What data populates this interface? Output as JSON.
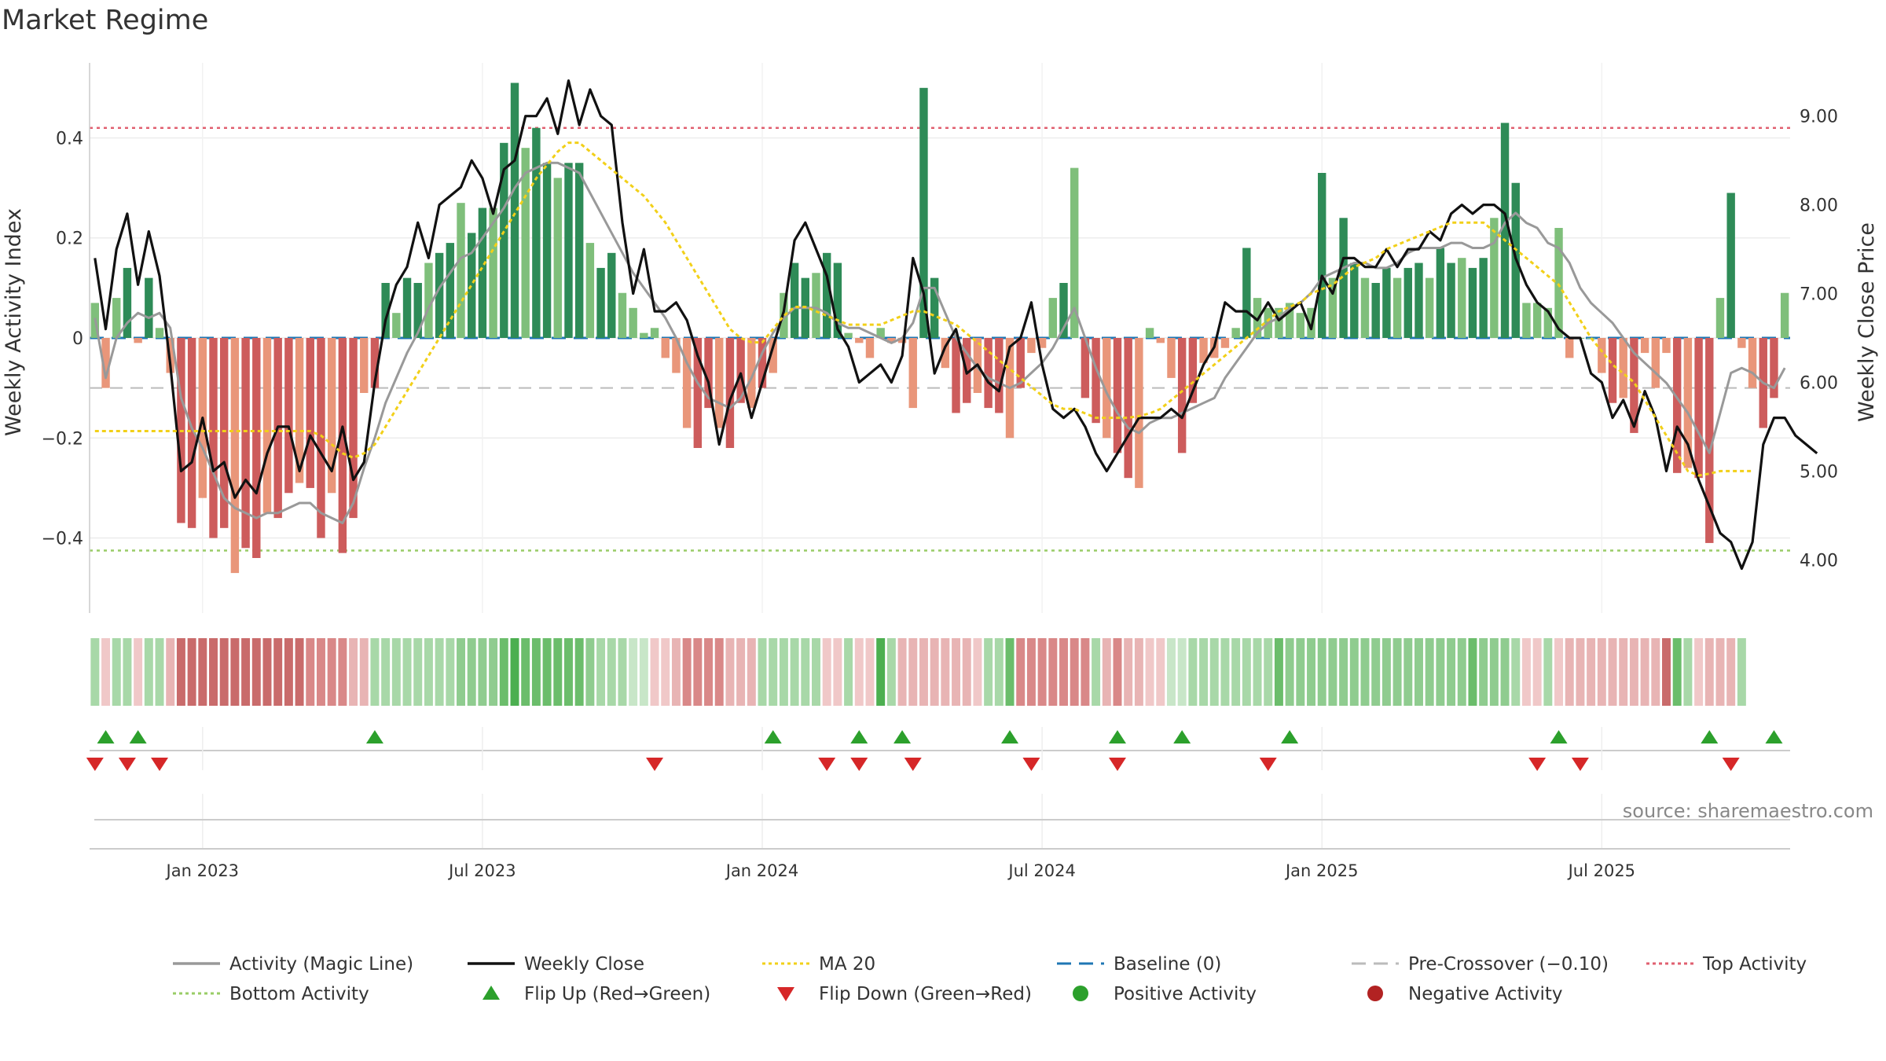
{
  "title": "Market Regime",
  "source_text": "source: sharemaestro.com",
  "chart_data": {
    "type": "bar",
    "y_left": {
      "label": "Weekly Activity Index",
      "ticks": [
        0.4,
        0.2,
        0,
        -0.2,
        -0.4
      ],
      "tick_labels": [
        "0.4",
        "0.2",
        "0",
        "−0.2",
        "−0.4"
      ],
      "range": [
        -0.55,
        0.55
      ]
    },
    "y_right": {
      "label": "Weekly Close Price",
      "ticks": [
        9.0,
        8.0,
        7.0,
        6.0,
        5.0,
        4.0
      ],
      "tick_labels": [
        "9.00",
        "8.00",
        "7.00",
        "6.00",
        "5.00",
        "4.00"
      ],
      "range": [
        3.4,
        9.6
      ]
    },
    "x_ticks": [
      {
        "label": "Jan 2023",
        "week": 10
      },
      {
        "label": "Jul 2023",
        "week": 36
      },
      {
        "label": "Jan 2024",
        "week": 62
      },
      {
        "label": "Jul 2024",
        "week": 88
      },
      {
        "label": "Jan 2025",
        "week": 114
      },
      {
        "label": "Jul 2025",
        "week": 140
      }
    ],
    "reference_lines": {
      "top_activity": 0.42,
      "bottom_activity": -0.425,
      "pre_crossover": -0.1,
      "baseline": 0
    },
    "activity_bars": [
      0.07,
      -0.1,
      0.08,
      0.14,
      -0.01,
      0.12,
      0.02,
      -0.07,
      -0.37,
      -0.38,
      -0.32,
      -0.4,
      -0.38,
      -0.47,
      -0.42,
      -0.44,
      -0.35,
      -0.36,
      -0.31,
      -0.29,
      -0.3,
      -0.4,
      -0.31,
      -0.43,
      -0.36,
      -0.11,
      -0.1,
      0.11,
      0.05,
      0.12,
      0.11,
      0.15,
      0.17,
      0.19,
      0.27,
      0.21,
      0.26,
      0.26,
      0.39,
      0.51,
      0.38,
      0.42,
      0.35,
      0.32,
      0.35,
      0.35,
      0.19,
      0.14,
      0.17,
      0.09,
      0.06,
      0.01,
      0.02,
      -0.04,
      -0.07,
      -0.18,
      -0.22,
      -0.14,
      -0.18,
      -0.22,
      -0.13,
      -0.14,
      -0.1,
      -0.07,
      0.09,
      0.15,
      0.12,
      0.13,
      0.17,
      0.15,
      0.01,
      -0.01,
      -0.04,
      0.02,
      -0.01,
      -0.01,
      -0.14,
      0.5,
      0.12,
      -0.06,
      -0.15,
      -0.13,
      -0.11,
      -0.14,
      -0.15,
      -0.2,
      -0.1,
      -0.03,
      -0.02,
      0.08,
      0.11,
      0.34,
      -0.12,
      -0.17,
      -0.2,
      -0.23,
      -0.28,
      -0.3,
      0.02,
      -0.01,
      -0.08,
      -0.23,
      -0.13,
      -0.05,
      -0.04,
      -0.02,
      0.02,
      0.18,
      0.08,
      0.06,
      0.06,
      0.07,
      0.05,
      0.06,
      0.33,
      0.12,
      0.24,
      0.15,
      0.12,
      0.11,
      0.14,
      0.12,
      0.14,
      0.15,
      0.12,
      0.18,
      0.15,
      0.16,
      0.14,
      0.16,
      0.24,
      0.43,
      0.31,
      0.07,
      0.07,
      0.06,
      0.22,
      -0.04,
      0.0,
      0.0,
      -0.07,
      -0.13,
      -0.12,
      -0.19,
      -0.03,
      -0.1,
      -0.03,
      -0.27,
      -0.26,
      -0.28,
      -0.41,
      0.08,
      0.29,
      -0.02,
      -0.1,
      -0.18,
      -0.12,
      0.09
    ],
    "bar_colors": {
      "positive_strong": "#2e8b57",
      "positive_light": "#7fbf7b",
      "negative_strong": "#cd5c5c",
      "negative_light": "#e9967a"
    },
    "series": [
      {
        "name": "Activity (Magic Line)",
        "color": "#999999",
        "values": [
          0.04,
          -0.08,
          0.0,
          0.03,
          0.05,
          0.04,
          0.05,
          0.02,
          -0.12,
          -0.18,
          -0.22,
          -0.27,
          -0.32,
          -0.34,
          -0.35,
          -0.36,
          -0.35,
          -0.35,
          -0.34,
          -0.33,
          -0.33,
          -0.35,
          -0.36,
          -0.37,
          -0.33,
          -0.26,
          -0.2,
          -0.13,
          -0.08,
          -0.03,
          0.01,
          0.06,
          0.1,
          0.13,
          0.16,
          0.17,
          0.2,
          0.23,
          0.26,
          0.3,
          0.33,
          0.34,
          0.35,
          0.35,
          0.34,
          0.33,
          0.29,
          0.25,
          0.21,
          0.17,
          0.13,
          0.1,
          0.07,
          0.04,
          0.0,
          -0.05,
          -0.09,
          -0.12,
          -0.13,
          -0.14,
          -0.12,
          -0.08,
          -0.03,
          0.01,
          0.04,
          0.06,
          0.06,
          0.06,
          0.05,
          0.03,
          0.02,
          0.02,
          0.01,
          0.0,
          -0.01,
          0.0,
          0.03,
          0.1,
          0.1,
          0.05,
          0.0,
          -0.03,
          -0.06,
          -0.08,
          -0.09,
          -0.1,
          -0.09,
          -0.07,
          -0.05,
          -0.02,
          0.02,
          0.06,
          0.0,
          -0.06,
          -0.11,
          -0.15,
          -0.18,
          -0.19,
          -0.17,
          -0.16,
          -0.16,
          -0.15,
          -0.14,
          -0.13,
          -0.12,
          -0.08,
          -0.05,
          -0.02,
          0.01,
          0.03,
          0.04,
          0.06,
          0.07,
          0.09,
          0.12,
          0.13,
          0.14,
          0.15,
          0.15,
          0.14,
          0.14,
          0.15,
          0.17,
          0.18,
          0.18,
          0.18,
          0.19,
          0.19,
          0.18,
          0.18,
          0.19,
          0.23,
          0.25,
          0.23,
          0.22,
          0.19,
          0.18,
          0.15,
          0.1,
          0.07,
          0.05,
          0.03,
          0.0,
          -0.03,
          -0.05,
          -0.07,
          -0.09,
          -0.12,
          -0.15,
          -0.19,
          -0.23,
          -0.15,
          -0.07,
          -0.06,
          -0.07,
          -0.09,
          -0.1,
          -0.06
        ]
      },
      {
        "name": "Weekly Close",
        "color": "#111111",
        "values": [
          7.4,
          6.6,
          7.5,
          7.9,
          7.1,
          7.7,
          7.2,
          6.2,
          5.0,
          5.1,
          5.6,
          5.0,
          5.1,
          4.7,
          4.9,
          4.75,
          5.2,
          5.5,
          5.5,
          5.0,
          5.4,
          5.2,
          5.0,
          5.5,
          4.9,
          5.1,
          6.0,
          6.7,
          7.1,
          7.3,
          7.8,
          7.4,
          8.0,
          8.1,
          8.2,
          8.5,
          8.3,
          7.9,
          8.4,
          8.5,
          9.0,
          9.0,
          9.2,
          8.8,
          9.4,
          8.9,
          9.3,
          9.0,
          8.9,
          7.8,
          7.0,
          7.5,
          6.8,
          6.8,
          6.9,
          6.7,
          6.3,
          6.0,
          5.3,
          5.8,
          6.1,
          5.6,
          6.0,
          6.4,
          6.8,
          7.6,
          7.8,
          7.5,
          7.2,
          6.6,
          6.4,
          6.0,
          6.1,
          6.2,
          6.0,
          6.3,
          7.4,
          7.0,
          6.1,
          6.4,
          6.6,
          6.1,
          6.2,
          6.0,
          5.9,
          6.4,
          6.5,
          6.9,
          6.2,
          5.7,
          5.6,
          5.7,
          5.5,
          5.2,
          5.0,
          5.2,
          5.4,
          5.6,
          5.6,
          5.6,
          5.7,
          5.6,
          5.9,
          6.2,
          6.4,
          6.9,
          6.8,
          6.8,
          6.7,
          6.9,
          6.7,
          6.8,
          6.9,
          6.6,
          7.2,
          7.0,
          7.4,
          7.4,
          7.3,
          7.3,
          7.5,
          7.3,
          7.5,
          7.5,
          7.7,
          7.6,
          7.9,
          8.0,
          7.9,
          8.0,
          8.0,
          7.9,
          7.4,
          7.1,
          6.9,
          6.8,
          6.6,
          6.5,
          6.5,
          6.1,
          6.0,
          5.6,
          5.8,
          5.5,
          5.9,
          5.6,
          5.0,
          5.5,
          5.3,
          4.9,
          4.6,
          4.3,
          4.2,
          3.9,
          4.2,
          5.3,
          5.6,
          5.6,
          5.4,
          5.3,
          5.2
        ],
        "range_check": [
          3.8,
          9.45
        ]
      },
      {
        "name": "MA 20",
        "color": "#f2d019",
        "values": [
          5.45,
          5.45,
          5.45,
          5.45,
          5.45,
          5.45,
          5.45,
          5.45,
          5.45,
          5.45,
          5.45,
          5.45,
          5.45,
          5.45,
          5.45,
          5.45,
          5.45,
          5.45,
          5.45,
          5.45,
          5.45,
          5.4,
          5.3,
          5.2,
          5.15,
          5.2,
          5.3,
          5.5,
          5.7,
          5.9,
          6.1,
          6.3,
          6.5,
          6.7,
          6.9,
          7.1,
          7.3,
          7.5,
          7.7,
          7.9,
          8.1,
          8.3,
          8.45,
          8.6,
          8.7,
          8.7,
          8.6,
          8.5,
          8.4,
          8.3,
          8.2,
          8.1,
          7.95,
          7.8,
          7.6,
          7.4,
          7.2,
          7.0,
          6.8,
          6.6,
          6.5,
          6.45,
          6.45,
          6.6,
          6.75,
          6.85,
          6.85,
          6.8,
          6.75,
          6.7,
          6.65,
          6.65,
          6.65,
          6.65,
          6.7,
          6.75,
          6.8,
          6.8,
          6.75,
          6.7,
          6.65,
          6.55,
          6.45,
          6.35,
          6.25,
          6.15,
          6.05,
          5.95,
          5.85,
          5.75,
          5.7,
          5.7,
          5.65,
          5.6,
          5.6,
          5.6,
          5.6,
          5.62,
          5.65,
          5.7,
          5.8,
          5.9,
          6.0,
          6.1,
          6.2,
          6.3,
          6.4,
          6.5,
          6.6,
          6.7,
          6.8,
          6.85,
          6.9,
          7.0,
          7.05,
          7.1,
          7.2,
          7.3,
          7.35,
          7.4,
          7.5,
          7.55,
          7.6,
          7.65,
          7.7,
          7.75,
          7.8,
          7.8,
          7.8,
          7.8,
          7.7,
          7.6,
          7.5,
          7.4,
          7.3,
          7.2,
          7.1,
          6.9,
          6.7,
          6.5,
          6.35,
          6.2,
          6.1,
          6.0,
          5.8,
          5.6,
          5.4,
          5.2,
          5.0,
          4.95,
          4.97,
          5.0,
          5.0,
          5.0,
          5.0
        ]
      }
    ],
    "regime_strip": [
      "#a8d8a8",
      "#f0c8c8",
      "#a8d8a8",
      "#a8d8a8",
      "#f0c8c8",
      "#a8d8a8",
      "#a8d8a8",
      "#e8b4b4",
      "#c96b6b",
      "#c96b6b",
      "#c96b6b",
      "#c96b6b",
      "#c96b6b",
      "#c96b6b",
      "#c96b6b",
      "#c96b6b",
      "#c96b6b",
      "#c96b6b",
      "#c96b6b",
      "#c96b6b",
      "#d98888",
      "#d98888",
      "#d98888",
      "#d98888",
      "#e8b4b4",
      "#e8b4b4",
      "#a8d8a8",
      "#a8d8a8",
      "#a8d8a8",
      "#a8d8a8",
      "#a8d8a8",
      "#a8d8a8",
      "#a8d8a8",
      "#a8d8a8",
      "#8fcc8f",
      "#8fcc8f",
      "#8fcc8f",
      "#8fcc8f",
      "#6bbd6b",
      "#4caf50",
      "#6bbd6b",
      "#6bbd6b",
      "#6bbd6b",
      "#6bbd6b",
      "#6bbd6b",
      "#6bbd6b",
      "#8fcc8f",
      "#a8d8a8",
      "#a8d8a8",
      "#a8d8a8",
      "#c8e6c8",
      "#c8e6c8",
      "#f0c8c8",
      "#f0c8c8",
      "#e8b4b4",
      "#d98888",
      "#d98888",
      "#d98888",
      "#d98888",
      "#e8b4b4",
      "#e8b4b4",
      "#e8b4b4",
      "#a8d8a8",
      "#a8d8a8",
      "#a8d8a8",
      "#a8d8a8",
      "#a8d8a8",
      "#a8d8a8",
      "#f0c8c8",
      "#f0c8c8",
      "#a8d8a8",
      "#f0c8c8",
      "#f0c8c8",
      "#4caf50",
      "#a8d8a8",
      "#e8b4b4",
      "#e8b4b4",
      "#e8b4b4",
      "#e8b4b4",
      "#e8b4b4",
      "#e8b4b4",
      "#e8b4b4",
      "#f0c8c8",
      "#a8d8a8",
      "#a8d8a8",
      "#6bbd6b",
      "#d98888",
      "#d98888",
      "#d98888",
      "#d98888",
      "#d98888",
      "#d98888",
      "#d98888",
      "#a8d8a8",
      "#e8b4b4",
      "#d98888",
      "#e8b4b4",
      "#e8b4b4",
      "#f0c8c8",
      "#f0c8c8",
      "#c8e6c8",
      "#c8e6c8",
      "#a8d8a8",
      "#a8d8a8",
      "#a8d8a8",
      "#a8d8a8",
      "#a8d8a8",
      "#a8d8a8",
      "#a8d8a8",
      "#a8d8a8",
      "#6bbd6b",
      "#8fcc8f",
      "#8fcc8f",
      "#8fcc8f",
      "#8fcc8f",
      "#8fcc8f",
      "#8fcc8f",
      "#8fcc8f",
      "#8fcc8f",
      "#8fcc8f",
      "#8fcc8f",
      "#8fcc8f",
      "#8fcc8f",
      "#8fcc8f",
      "#8fcc8f",
      "#8fcc8f",
      "#8fcc8f",
      "#8fcc8f",
      "#6bbd6b",
      "#8fcc8f",
      "#8fcc8f",
      "#8fcc8f",
      "#a8d8a8",
      "#f0c8c8",
      "#f0c8c8",
      "#a8d8a8",
      "#f0c8c8",
      "#e8b4b4",
      "#e8b4b4",
      "#e8b4b4",
      "#e8b4b4",
      "#e8b4b4",
      "#e8b4b4",
      "#e8b4b4",
      "#e8b4b4",
      "#e8b4b4",
      "#c96b6b",
      "#6bbd6b",
      "#a8d8a8",
      "#f0c8c8",
      "#e8b4b4",
      "#e8b4b4",
      "#e8b4b4",
      "#a8d8a8"
    ],
    "flip_up_weeks": [
      1,
      4,
      26,
      63,
      71,
      75,
      85,
      95,
      101,
      111,
      136,
      150,
      156
    ],
    "flip_down_weeks": [
      0,
      3,
      6,
      52,
      68,
      71,
      76,
      87,
      95,
      109,
      134,
      138,
      152
    ],
    "legend": [
      {
        "label": "Activity (Magic Line)",
        "kind": "line",
        "color": "#999999"
      },
      {
        "label": "Weekly Close",
        "kind": "line",
        "color": "#111111"
      },
      {
        "label": "MA 20",
        "kind": "dotted",
        "color": "#f2d019"
      },
      {
        "label": "Baseline (0)",
        "kind": "dashed",
        "color": "#1f77b4"
      },
      {
        "label": "Pre-Crossover (−0.10)",
        "kind": "dashed",
        "color": "#bbbbbb"
      },
      {
        "label": "Top Activity",
        "kind": "dotted",
        "color": "#e06070"
      },
      {
        "label": "Bottom Activity",
        "kind": "dotted",
        "color": "#99cc66"
      },
      {
        "label": "Flip Up (Red→Green)",
        "kind": "triangle-up",
        "color": "#2ca02c"
      },
      {
        "label": "Flip Down (Green→Red)",
        "kind": "triangle-down",
        "color": "#d62728"
      },
      {
        "label": "Positive Activity",
        "kind": "circle",
        "color": "#2ca02c"
      },
      {
        "label": "Negative Activity",
        "kind": "circle",
        "color": "#b22222"
      }
    ]
  }
}
